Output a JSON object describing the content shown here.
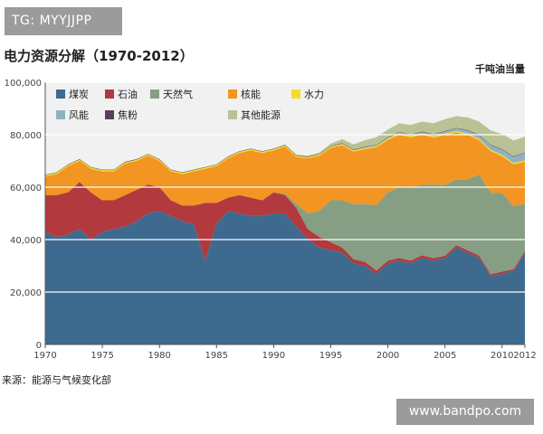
{
  "watermark_top": "TG: MYYJJPP",
  "watermark_bottom": "www.bandpo.com",
  "source_note": "来源：能源与气候变化部",
  "colors": {
    "coal": "#3e6a8f",
    "oil": "#b2393e",
    "gas": "#869e83",
    "nuclear": "#f39522",
    "hydro": "#f2dc2c",
    "wind": "#8fb2c2",
    "coke": "#5a3f5c",
    "other": "#b8c294",
    "plot_bg": "#f1f1f1",
    "grid": "#ffffff"
  },
  "chart_data": {
    "type": "area",
    "stacked": true,
    "title": "电力资源分解（1970-2012）",
    "unit": "千吨油当量",
    "xlim": [
      1970,
      2012
    ],
    "ylim": [
      0,
      100000
    ],
    "x_ticks": [
      1970,
      1975,
      1980,
      1985,
      1990,
      1995,
      2000,
      2005,
      2010,
      2012
    ],
    "y_ticks": [
      "0",
      "20,000",
      "40,000",
      "60,000",
      "80,000",
      "100,000"
    ],
    "grid": true,
    "legend_position": "top-left-inside",
    "x": [
      1970,
      1971,
      1972,
      1973,
      1974,
      1975,
      1976,
      1977,
      1978,
      1979,
      1980,
      1981,
      1982,
      1983,
      1984,
      1985,
      1986,
      1987,
      1988,
      1989,
      1990,
      1991,
      1992,
      1993,
      1994,
      1995,
      1996,
      1997,
      1998,
      1999,
      2000,
      2001,
      2002,
      2003,
      2004,
      2005,
      2006,
      2007,
      2008,
      2009,
      2010,
      2011,
      2012
    ],
    "series": [
      {
        "key": "coal",
        "name": "煤炭",
        "values": [
          43000,
          41000,
          42000,
          44000,
          40000,
          43000,
          44000,
          45000,
          47000,
          50000,
          51000,
          49000,
          47000,
          46000,
          32000,
          46000,
          51000,
          50000,
          49000,
          49000,
          50000,
          50000,
          45000,
          40000,
          37000,
          36000,
          35000,
          31000,
          30000,
          27000,
          31000,
          32000,
          31000,
          33000,
          32000,
          33000,
          37000,
          35000,
          33000,
          26000,
          27000,
          28000,
          35000
        ]
      },
      {
        "key": "oil",
        "name": "石油",
        "values": [
          14000,
          16000,
          16000,
          18000,
          18000,
          12000,
          11000,
          12000,
          12000,
          11000,
          9000,
          6000,
          6000,
          7000,
          22000,
          8000,
          5000,
          7000,
          7000,
          6000,
          8000,
          7000,
          7000,
          4000,
          4000,
          3000,
          2000,
          1500,
          1500,
          1200,
          1000,
          1000,
          1000,
          1000,
          900,
          900,
          900,
          900,
          900,
          800,
          800,
          700,
          700
        ]
      },
      {
        "key": "gas",
        "name": "天然气",
        "values": [
          0,
          0,
          0,
          0,
          0,
          0,
          0,
          0,
          0,
          0,
          0,
          0,
          0,
          0,
          0,
          0,
          0,
          0,
          0,
          0,
          0,
          500,
          1500,
          6000,
          10000,
          16000,
          18000,
          21000,
          22000,
          25000,
          26000,
          27000,
          28000,
          27000,
          28000,
          27000,
          25000,
          27000,
          31000,
          31000,
          30000,
          24000,
          18000
        ]
      },
      {
        "key": "nuclear",
        "name": "核能",
        "values": [
          7000,
          8000,
          10000,
          8000,
          9000,
          11000,
          11000,
          12000,
          11000,
          11000,
          10000,
          11000,
          12000,
          13000,
          13000,
          14000,
          15000,
          16000,
          18000,
          18000,
          16000,
          18000,
          18000,
          21000,
          21000,
          20000,
          21000,
          20000,
          21000,
          22000,
          20000,
          20000,
          19000,
          19000,
          18000,
          19000,
          18000,
          17000,
          13000,
          16000,
          14000,
          16000,
          16000
        ]
      },
      {
        "key": "hydro",
        "name": "水力",
        "values": [
          500,
          500,
          500,
          500,
          500,
          500,
          500,
          500,
          500,
          500,
          500,
          500,
          500,
          500,
          500,
          500,
          500,
          500,
          500,
          500,
          500,
          500,
          500,
          500,
          500,
          500,
          500,
          500,
          500,
          500,
          500,
          500,
          500,
          500,
          500,
          500,
          500,
          500,
          500,
          500,
          500,
          500,
          500
        ]
      },
      {
        "key": "wind",
        "name": "风能",
        "values": [
          0,
          0,
          0,
          0,
          0,
          0,
          0,
          0,
          0,
          0,
          0,
          0,
          0,
          0,
          0,
          0,
          0,
          0,
          0,
          0,
          0,
          0,
          0,
          0,
          0,
          0,
          100,
          150,
          200,
          250,
          300,
          350,
          400,
          500,
          600,
          800,
          1000,
          1200,
          1400,
          1700,
          2000,
          2400,
          2800
        ]
      },
      {
        "key": "coke",
        "name": "焦粉",
        "values": [
          200,
          200,
          200,
          200,
          200,
          200,
          200,
          200,
          200,
          200,
          200,
          200,
          200,
          200,
          200,
          200,
          200,
          200,
          200,
          200,
          200,
          200,
          200,
          200,
          200,
          200,
          200,
          200,
          200,
          200,
          200,
          200,
          200,
          200,
          200,
          200,
          200,
          200,
          200,
          200,
          200,
          200,
          200
        ]
      },
      {
        "key": "other",
        "name": "其他能源",
        "values": [
          0,
          0,
          0,
          0,
          0,
          0,
          0,
          0,
          0,
          0,
          0,
          0,
          0,
          0,
          0,
          0,
          0,
          0,
          0,
          0,
          0,
          0,
          200,
          300,
          500,
          900,
          1500,
          2000,
          2500,
          2900,
          3000,
          3300,
          3600,
          3800,
          4200,
          4500,
          4500,
          4800,
          5000,
          5500,
          5800,
          6000,
          6000
        ]
      }
    ]
  }
}
